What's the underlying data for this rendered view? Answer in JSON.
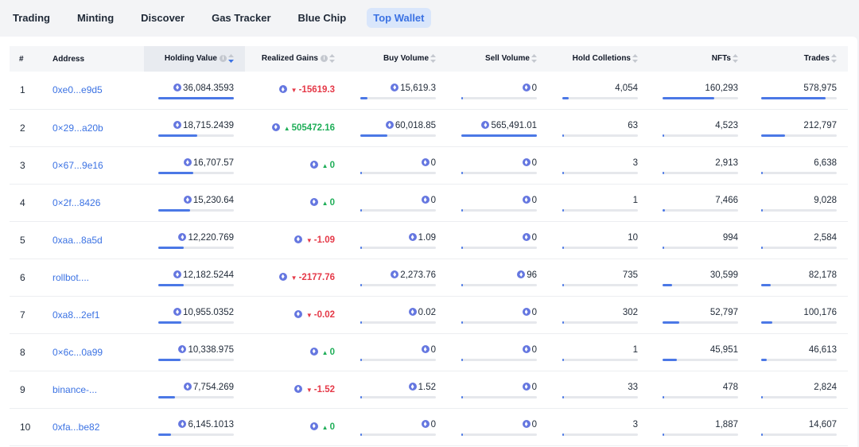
{
  "tabs": [
    {
      "label": "Trading",
      "active": false
    },
    {
      "label": "Minting",
      "active": false
    },
    {
      "label": "Discover",
      "active": false
    },
    {
      "label": "Gas Tracker",
      "active": false
    },
    {
      "label": "Blue Chip",
      "active": false
    },
    {
      "label": "Top Wallet",
      "active": true
    }
  ],
  "table": {
    "headers": {
      "rank": "#",
      "address": "Address",
      "holding_value": "Holding Value",
      "realized_gains": "Realized Gains",
      "buy_volume": "Buy Volume",
      "sell_volume": "Sell Volume",
      "hold_collections": "Hold Colletions",
      "nfts": "NFTs",
      "trades": "Trades"
    },
    "sorted_column": "holding_value",
    "sort_direction": "desc",
    "colors": {
      "accent": "#3b72e3",
      "negative": "#e53948",
      "positive": "#1fae58",
      "bar_fill": "#4b78e6",
      "eth_icon": "#6577e0"
    },
    "rows": [
      {
        "rank": "1",
        "address": "0xe0...e9d5",
        "holding": "36,084.3593",
        "holding_pct": 1.0,
        "gain": "-15619.3",
        "gain_dir": "down",
        "buy": "15,619.3",
        "buy_pct": 0.09,
        "sell": "0",
        "sell_pct": 0.0,
        "collections": "4,054",
        "collections_pct": 0.08,
        "nfts": "160,293",
        "nfts_pct": 0.68,
        "trades": "578,975",
        "trades_pct": 0.85
      },
      {
        "rank": "2",
        "address": "0×29...a20b",
        "holding": "18,715.2439",
        "holding_pct": 0.52,
        "gain": "505472.16",
        "gain_dir": "up",
        "buy": "60,018.85",
        "buy_pct": 0.36,
        "sell": "565,491.01",
        "sell_pct": 1.0,
        "collections": "63",
        "collections_pct": 0.01,
        "nfts": "4,523",
        "nfts_pct": 0.02,
        "trades": "212,797",
        "trades_pct": 0.32
      },
      {
        "rank": "3",
        "address": "0×67...9e16",
        "holding": "16,707.57",
        "holding_pct": 0.46,
        "gain": "0",
        "gain_dir": "up",
        "buy": "0",
        "buy_pct": 0.0,
        "sell": "0",
        "sell_pct": 0.0,
        "collections": "3",
        "collections_pct": 0.0,
        "nfts": "2,913",
        "nfts_pct": 0.02,
        "trades": "6,638",
        "trades_pct": 0.01
      },
      {
        "rank": "4",
        "address": "0×2f...8426",
        "holding": "15,230.64",
        "holding_pct": 0.42,
        "gain": "0",
        "gain_dir": "up",
        "buy": "0",
        "buy_pct": 0.0,
        "sell": "0",
        "sell_pct": 0.0,
        "collections": "1",
        "collections_pct": 0.0,
        "nfts": "7,466",
        "nfts_pct": 0.03,
        "trades": "9,028",
        "trades_pct": 0.02
      },
      {
        "rank": "5",
        "address": "0xaa...8a5d",
        "holding": "12,220.769",
        "holding_pct": 0.34,
        "gain": "-1.09",
        "gain_dir": "down",
        "buy": "1.09",
        "buy_pct": 0.0,
        "sell": "0",
        "sell_pct": 0.0,
        "collections": "10",
        "collections_pct": 0.0,
        "nfts": "994",
        "nfts_pct": 0.0,
        "trades": "2,584",
        "trades_pct": 0.0
      },
      {
        "rank": "6",
        "address": "rollbot....",
        "holding": "12,182.5244",
        "holding_pct": 0.34,
        "gain": "-2177.76",
        "gain_dir": "down",
        "buy": "2,273.76",
        "buy_pct": 0.01,
        "sell": "96",
        "sell_pct": 0.0,
        "collections": "735",
        "collections_pct": 0.01,
        "nfts": "30,599",
        "nfts_pct": 0.13,
        "trades": "82,178",
        "trades_pct": 0.13
      },
      {
        "rank": "7",
        "address": "0xa8...2ef1",
        "holding": "10,955.0352",
        "holding_pct": 0.3,
        "gain": "-0.02",
        "gain_dir": "down",
        "buy": "0.02",
        "buy_pct": 0.0,
        "sell": "0",
        "sell_pct": 0.0,
        "collections": "302",
        "collections_pct": 0.0,
        "nfts": "52,797",
        "nfts_pct": 0.22,
        "trades": "100,176",
        "trades_pct": 0.15
      },
      {
        "rank": "8",
        "address": "0×6c...0a99",
        "holding": "10,338.975",
        "holding_pct": 0.29,
        "gain": "0",
        "gain_dir": "up",
        "buy": "0",
        "buy_pct": 0.0,
        "sell": "0",
        "sell_pct": 0.0,
        "collections": "1",
        "collections_pct": 0.0,
        "nfts": "45,951",
        "nfts_pct": 0.19,
        "trades": "46,613",
        "trades_pct": 0.07
      },
      {
        "rank": "9",
        "address": "binance-...",
        "holding": "7,754.269",
        "holding_pct": 0.22,
        "gain": "-1.52",
        "gain_dir": "down",
        "buy": "1.52",
        "buy_pct": 0.0,
        "sell": "0",
        "sell_pct": 0.0,
        "collections": "33",
        "collections_pct": 0.0,
        "nfts": "478",
        "nfts_pct": 0.0,
        "trades": "2,824",
        "trades_pct": 0.0
      },
      {
        "rank": "10",
        "address": "0xfa...be82",
        "holding": "6,145.1013",
        "holding_pct": 0.17,
        "gain": "0",
        "gain_dir": "up",
        "buy": "0",
        "buy_pct": 0.0,
        "sell": "0",
        "sell_pct": 0.0,
        "collections": "3",
        "collections_pct": 0.0,
        "nfts": "1,887",
        "nfts_pct": 0.01,
        "trades": "14,607",
        "trades_pct": 0.02
      }
    ]
  }
}
